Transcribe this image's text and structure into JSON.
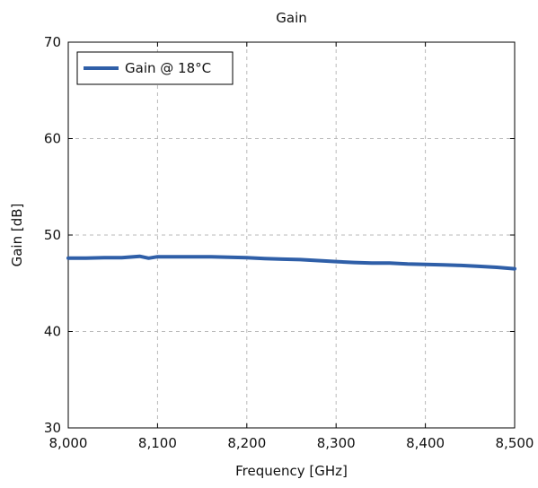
{
  "chart_data": {
    "type": "line",
    "title": "Gain",
    "xlabel": "Frequency [GHz]",
    "ylabel": "Gain [dB]",
    "xlim": [
      8000,
      8500
    ],
    "ylim": [
      30,
      70
    ],
    "xticks": [
      8000,
      8100,
      8200,
      8300,
      8400,
      8500
    ],
    "xtick_labels": [
      "8,000",
      "8,100",
      "8,200",
      "8,300",
      "8,400",
      "8,500"
    ],
    "yticks": [
      30,
      40,
      50,
      60,
      70
    ],
    "ytick_labels": [
      "30",
      "40",
      "50",
      "60",
      "70"
    ],
    "grid": true,
    "legend_position": "top-left",
    "series": [
      {
        "name": "Gain @ 18°C",
        "color": "#2f5fa8",
        "x": [
          8000,
          8020,
          8040,
          8060,
          8080,
          8090,
          8100,
          8120,
          8140,
          8160,
          8180,
          8200,
          8220,
          8240,
          8260,
          8280,
          8300,
          8320,
          8340,
          8360,
          8380,
          8400,
          8420,
          8440,
          8460,
          8480,
          8500
        ],
        "y": [
          47.6,
          47.6,
          47.65,
          47.65,
          47.8,
          47.6,
          47.75,
          47.75,
          47.75,
          47.75,
          47.7,
          47.65,
          47.55,
          47.5,
          47.45,
          47.35,
          47.25,
          47.15,
          47.1,
          47.1,
          47.0,
          46.95,
          46.9,
          46.85,
          46.75,
          46.65,
          46.5
        ]
      }
    ]
  }
}
